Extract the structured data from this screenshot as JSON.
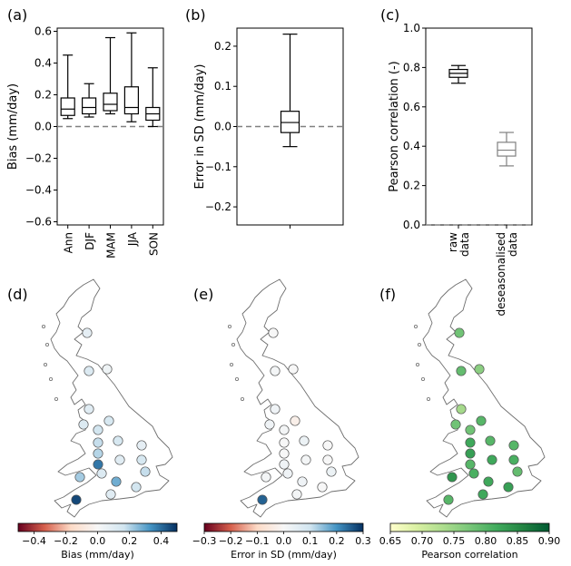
{
  "charts": [
    {
      "type": "boxplot",
      "panel_label": "(a)",
      "ylabel": "Bias (mm/day)",
      "ylim": [
        -0.62,
        0.62
      ],
      "yticks": [
        -0.6,
        -0.4,
        -0.2,
        0.0,
        0.2,
        0.4,
        0.6
      ],
      "ytick_labels": [
        "−0.6",
        "−0.4",
        "−0.2",
        "0.0",
        "0.2",
        "0.4",
        "0.6"
      ],
      "reference_line": 0.0,
      "categories": [
        "Ann",
        "DJF",
        "MAM",
        "JJA",
        "SON"
      ],
      "boxes": [
        {
          "whisker_low": 0.05,
          "q1": 0.07,
          "median": 0.11,
          "q3": 0.18,
          "whisker_high": 0.45
        },
        {
          "whisker_low": 0.06,
          "q1": 0.08,
          "median": 0.12,
          "q3": 0.18,
          "whisker_high": 0.27
        },
        {
          "whisker_low": 0.08,
          "q1": 0.1,
          "median": 0.14,
          "q3": 0.21,
          "whisker_high": 0.56
        },
        {
          "whisker_low": 0.03,
          "q1": 0.08,
          "median": 0.12,
          "q3": 0.25,
          "whisker_high": 0.59
        },
        {
          "whisker_low": 0.0,
          "q1": 0.04,
          "median": 0.08,
          "q3": 0.12,
          "whisker_high": 0.37
        }
      ]
    },
    {
      "type": "boxplot",
      "panel_label": "(b)",
      "ylabel": "Error in SD (mm/day)",
      "ylim": [
        -0.245,
        0.245
      ],
      "yticks": [
        -0.2,
        -0.1,
        0.0,
        0.1,
        0.2
      ],
      "ytick_labels": [
        "−0.2",
        "−0.1",
        "0.0",
        "0.1",
        "0.2"
      ],
      "reference_line": 0.0,
      "categories": [
        ""
      ],
      "boxes": [
        {
          "whisker_low": -0.05,
          "q1": -0.015,
          "median": 0.01,
          "q3": 0.038,
          "whisker_high": 0.23
        }
      ]
    },
    {
      "type": "boxplot",
      "panel_label": "(c)",
      "ylabel": "Pearson correlation (-)",
      "ylim": [
        0.0,
        1.0
      ],
      "yticks": [
        0.0,
        0.2,
        0.4,
        0.6,
        0.8,
        1.0
      ],
      "ytick_labels": [
        "0.0",
        "0.2",
        "0.4",
        "0.6",
        "0.8",
        "1.0"
      ],
      "reference_line": 0.0,
      "categories": [
        "raw data",
        "deseasonalised data"
      ],
      "category_lines": [
        [
          "raw",
          "data"
        ],
        [
          "deseasonalised",
          "data"
        ]
      ],
      "boxes": [
        {
          "whisker_low": 0.72,
          "q1": 0.75,
          "median": 0.77,
          "q3": 0.79,
          "whisker_high": 0.81,
          "color": "#000000"
        },
        {
          "whisker_low": 0.3,
          "q1": 0.35,
          "median": 0.38,
          "q3": 0.42,
          "whisker_high": 0.47,
          "color": "#808080"
        }
      ]
    }
  ],
  "maps": [
    {
      "panel_label": "(d)",
      "colorbar": {
        "label": "Bias (mm/day)",
        "range": [
          -0.5,
          0.5
        ],
        "ticks": [
          "−0.4",
          "−0.2",
          "0.0",
          "0.2",
          "0.4"
        ],
        "stops": [
          "#67001f",
          "#d6604d",
          "#fddbc7",
          "#f7f7f7",
          "#d1e5f0",
          "#4393c3",
          "#053061"
        ]
      },
      "station_values": [
        0.08,
        0.12,
        0.04,
        0.1,
        0.14,
        0.12,
        0.16,
        0.18,
        0.14,
        0.2,
        0.38,
        0.08,
        0.1,
        0.12,
        0.18,
        0.16,
        0.22,
        0.28,
        0.14,
        0.1,
        0.46
      ]
    },
    {
      "panel_label": "(e)",
      "colorbar": {
        "label": "Error in SD (mm/day)",
        "range": [
          -0.3,
          0.3
        ],
        "ticks": [
          "−0.3",
          "−0.2",
          "−0.1",
          "0.0",
          "0.1",
          "0.2",
          "0.3"
        ],
        "stops": [
          "#67001f",
          "#d6604d",
          "#fddbc7",
          "#f7f7f7",
          "#d1e5f0",
          "#4393c3",
          "#053061"
        ]
      },
      "station_values": [
        0.0,
        0.01,
        0.0,
        0.02,
        -0.03,
        0.02,
        0.01,
        0.0,
        0.03,
        0.0,
        0.02,
        0.0,
        0.01,
        0.02,
        0.03,
        0.0,
        0.01,
        0.02,
        0.0,
        0.01,
        0.25
      ]
    },
    {
      "panel_label": "(f)",
      "colorbar": {
        "label": "Pearson correlation",
        "range": [
          0.65,
          0.9
        ],
        "ticks": [
          "0.65",
          "0.70",
          "0.75",
          "0.80",
          "0.85",
          "0.90"
        ],
        "stops": [
          "#ffffcc",
          "#d9f0a3",
          "#addd8e",
          "#78c679",
          "#41ab5d",
          "#238443",
          "#005a32"
        ]
      },
      "station_values": [
        0.78,
        0.79,
        0.76,
        0.74,
        0.8,
        0.78,
        0.78,
        0.82,
        0.8,
        0.83,
        0.8,
        0.8,
        0.82,
        0.81,
        0.79,
        0.83,
        0.84,
        0.82,
        0.81,
        0.82,
        0.8
      ]
    }
  ]
}
